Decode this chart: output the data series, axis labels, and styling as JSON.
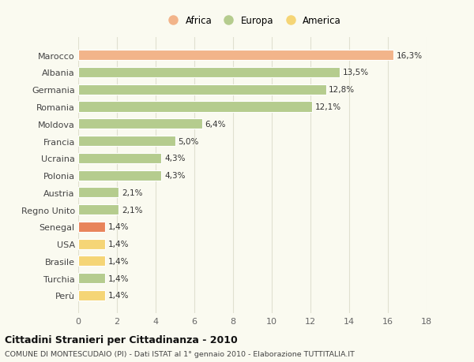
{
  "categories": [
    "Marocco",
    "Albania",
    "Germania",
    "Romania",
    "Moldova",
    "Francia",
    "Ucraina",
    "Polonia",
    "Austria",
    "Regno Unito",
    "Senegal",
    "USA",
    "Brasile",
    "Turchia",
    "Perù"
  ],
  "values": [
    16.3,
    13.5,
    12.8,
    12.1,
    6.4,
    5.0,
    4.3,
    4.3,
    2.1,
    2.1,
    1.4,
    1.4,
    1.4,
    1.4,
    1.4
  ],
  "labels": [
    "16,3%",
    "13,5%",
    "12,8%",
    "12,1%",
    "6,4%",
    "5,0%",
    "4,3%",
    "4,3%",
    "2,1%",
    "2,1%",
    "1,4%",
    "1,4%",
    "1,4%",
    "1,4%",
    "1,4%"
  ],
  "colors": [
    "#f2b48a",
    "#b5cc8e",
    "#b5cc8e",
    "#b5cc8e",
    "#b5cc8e",
    "#b5cc8e",
    "#b5cc8e",
    "#b5cc8e",
    "#b5cc8e",
    "#b5cc8e",
    "#e8845a",
    "#f5d576",
    "#f5d576",
    "#b5cc8e",
    "#f5d576"
  ],
  "legend_labels": [
    "Africa",
    "Europa",
    "America"
  ],
  "legend_colors": [
    "#f2b48a",
    "#b5cc8e",
    "#f5d576"
  ],
  "title": "Cittadini Stranieri per Cittadinanza - 2010",
  "subtitle": "COMUNE DI MONTESCUDAIO (PI) - Dati ISTAT al 1° gennaio 2010 - Elaborazione TUTTITALIA.IT",
  "xlim": [
    0,
    18
  ],
  "xticks": [
    0,
    2,
    4,
    6,
    8,
    10,
    12,
    14,
    16,
    18
  ],
  "background_color": "#fafaf0",
  "grid_color": "#e0e0d0",
  "bar_height": 0.6
}
